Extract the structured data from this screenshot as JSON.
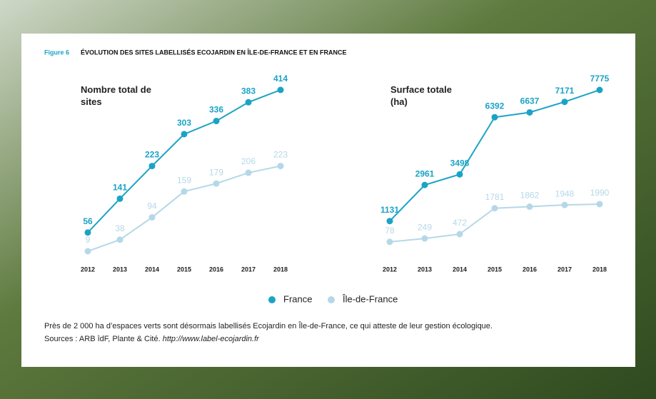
{
  "figure_label": "Figure 6",
  "title": "ÉVOLUTION DES SITES LABELLISÉS ECOJARDIN EN ÎLE-DE-FRANCE ET EN FRANCE",
  "chart_data": [
    {
      "type": "line",
      "title": "Nombre total de sites",
      "categories": [
        "2012",
        "2013",
        "2014",
        "2015",
        "2016",
        "2017",
        "2018"
      ],
      "series": [
        {
          "name": "France",
          "color": "#1ba3c6",
          "values": [
            56,
            141,
            223,
            303,
            336,
            383,
            414
          ]
        },
        {
          "name": "Île-de-France",
          "color": "#b5d8e8",
          "values": [
            9,
            38,
            94,
            159,
            179,
            206,
            223
          ]
        }
      ]
    },
    {
      "type": "line",
      "title": "Surface totale (ha)",
      "categories": [
        "2012",
        "2013",
        "2014",
        "2015",
        "2016",
        "2017",
        "2018"
      ],
      "series": [
        {
          "name": "France",
          "color": "#1ba3c6",
          "values": [
            1131,
            2961,
            3498,
            6392,
            6637,
            7171,
            7775
          ]
        },
        {
          "name": "Île-de-France",
          "color": "#b5d8e8",
          "values": [
            78,
            249,
            472,
            1781,
            1862,
            1948,
            1990
          ]
        }
      ]
    }
  ],
  "note": "Près de 2 000 ha d’espaces verts sont désormais labellisés Ecojardin en Île-de-France, ce qui atteste de leur gestion écologique.",
  "sources": "Sources : ARB îdF, Plante & Cité.",
  "sources_url": "http://www.label-ecojardin.fr"
}
